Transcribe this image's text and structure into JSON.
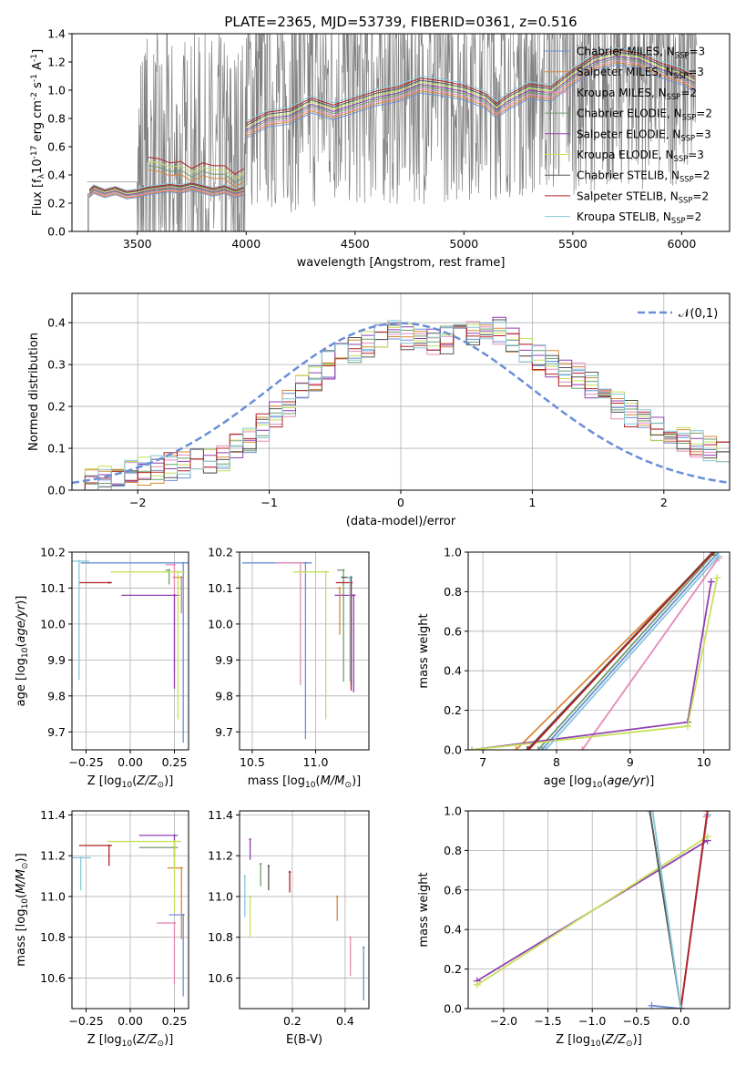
{
  "figure_title": "PLATE=2365, MJD=53739, FIBERID=0361, z=0.516",
  "model_names": [
    "Chabrier MILES",
    "Salpeter MILES",
    "Kroupa MILES",
    "Chabrier ELODIE",
    "Salpeter ELODIE",
    "Kroupa ELODIE",
    "Chabrier STELIB",
    "Salpeter STELIB",
    "Kroupa STELIB"
  ],
  "model_colors": [
    "#6a8fd6",
    "#d8883a",
    "#e58ab8",
    "#6f9e6c",
    "#8f3fb0",
    "#c6e05a",
    "#555555",
    "#b22222",
    "#88c7d8"
  ],
  "chart_data": [
    {
      "type": "line",
      "panel": "spectrum",
      "title": "PLATE=2365, MJD=53739, FIBERID=0361, z=0.516",
      "xlabel": "wavelength [Angstrom, rest frame]",
      "ylabel": "Flux [f$_\\lambda$10$^{-17}$ erg cm$^{-2}$ s$^{-1}$ A$^{-1}$]",
      "xlim": [
        3200,
        6220
      ],
      "ylim": [
        0,
        1.4
      ],
      "xticks": [
        3500,
        4000,
        4500,
        5000,
        5500,
        6000
      ],
      "yticks": [
        0.0,
        0.2,
        0.4,
        0.6,
        0.8,
        1.0,
        1.2,
        1.4
      ],
      "grid": false,
      "legend_position": "upper right",
      "legend": [
        "Chabrier MILES, N$_{SSP}$=3",
        "Salpeter MILES, N$_{SSP}$=3",
        "Kroupa MILES, N$_{SSP}$=2",
        "Chabrier ELODIE, N$_{SSP}$=2",
        "Salpeter ELODIE, N$_{SSP}$=3",
        "Kroupa ELODIE, N$_{SSP}$=3",
        "Chabrier STELIB, N$_{SSP}$=2",
        "Salpeter STELIB, N$_{SSP}$=2",
        "Kroupa STELIB, N$_{SSP}$=2"
      ],
      "observed_flux_color": "#808080",
      "continuum_short": {
        "x": [
          3280,
          3300,
          3350,
          3400,
          3450,
          3500,
          3550,
          3600,
          3650,
          3700,
          3750,
          3800,
          3850,
          3900,
          3950,
          3990
        ],
        "y": [
          0.27,
          0.3,
          0.27,
          0.29,
          0.26,
          0.27,
          0.29,
          0.3,
          0.31,
          0.3,
          0.32,
          0.3,
          0.28,
          0.3,
          0.27,
          0.29
        ]
      },
      "continuum_blue": {
        "x": [
          3550,
          3600,
          3650,
          3700,
          3750,
          3800,
          3850,
          3900,
          3950,
          3990
        ],
        "y": [
          0.48,
          0.47,
          0.44,
          0.45,
          0.4,
          0.44,
          0.42,
          0.42,
          0.36,
          0.4
        ]
      },
      "continuum_main": {
        "x": [
          4000,
          4100,
          4200,
          4300,
          4400,
          4500,
          4600,
          4700,
          4800,
          4900,
          5000,
          5100,
          5150,
          5200,
          5300,
          5400,
          5500,
          5600,
          5700,
          5800,
          5900,
          6000,
          6060
        ],
        "y": [
          0.72,
          0.8,
          0.82,
          0.9,
          0.85,
          0.9,
          0.95,
          0.98,
          1.04,
          1.02,
          0.99,
          0.93,
          0.86,
          0.92,
          1.0,
          0.98,
          1.1,
          1.2,
          1.24,
          1.22,
          1.15,
          1.1,
          1.05
        ]
      }
    },
    {
      "type": "histogram",
      "panel": "residuals",
      "xlabel": "(data-model)/error",
      "ylabel": "Normed distribution",
      "xlim": [
        -2.5,
        2.5
      ],
      "ylim": [
        0,
        0.47
      ],
      "xticks": [
        -2,
        -1,
        0,
        1,
        2
      ],
      "yticks": [
        0.0,
        0.1,
        0.2,
        0.3,
        0.4
      ],
      "grid": true,
      "legend_position": "upper right",
      "legend": [
        "$\\mathcal{N}(0,1)$"
      ],
      "bin_width": 0.1,
      "bin_start": -2.5,
      "base_profile": [
        0.02,
        0.025,
        0.03,
        0.035,
        0.04,
        0.045,
        0.05,
        0.055,
        0.06,
        0.065,
        0.07,
        0.08,
        0.1,
        0.12,
        0.15,
        0.18,
        0.21,
        0.24,
        0.27,
        0.3,
        0.32,
        0.33,
        0.35,
        0.37,
        0.38,
        0.37,
        0.36,
        0.35,
        0.36,
        0.37,
        0.38,
        0.39,
        0.38,
        0.36,
        0.34,
        0.32,
        0.3,
        0.28,
        0.27,
        0.25,
        0.23,
        0.2,
        0.18,
        0.16,
        0.14,
        0.13,
        0.12,
        0.11,
        0.1,
        0.09
      ]
    },
    {
      "type": "scatter",
      "panel": "age-vs-metallicity",
      "xlabel": "Z [log$_{10}$($Z/Z_\\odot$)]",
      "ylabel": "age  [log$_{10}$($age/yr$)]",
      "xlim": [
        -0.33,
        0.33
      ],
      "ylim": [
        9.65,
        10.2
      ],
      "xticks": [
        -0.25,
        0.0,
        0.25
      ],
      "xticklabels": [
        "-0.25",
        "0.00",
        "0.25"
      ],
      "yticks": [
        9.7,
        9.8,
        9.9,
        10.0,
        10.1,
        10.2
      ],
      "grid": true,
      "points": [
        {
          "model": 0,
          "x": 0.3,
          "y": 10.17,
          "xerr": 0.58,
          "yerr": 0.5
        },
        {
          "model": 1,
          "x": 0.29,
          "y": 10.13,
          "xerr": 0.05,
          "yerr": 0.1
        },
        {
          "model": 2,
          "x": 0.25,
          "y": 10.165,
          "xerr": 0.05,
          "yerr": 0.3
        },
        {
          "model": 3,
          "x": 0.22,
          "y": 10.15,
          "xerr": 0.02,
          "yerr": 0.04
        },
        {
          "model": 4,
          "x": 0.25,
          "y": 10.08,
          "xerr": 0.3,
          "yerr": 0.26
        },
        {
          "model": 5,
          "x": 0.27,
          "y": 10.145,
          "xerr": 0.38,
          "yerr": 0.41
        },
        {
          "model": 7,
          "x": -0.12,
          "y": 10.115,
          "xerr": 0.17,
          "yerr": 0.0
        },
        {
          "model": 8,
          "x": -0.29,
          "y": 10.175,
          "xerr": 0.59,
          "yerr": 0.33
        }
      ]
    },
    {
      "type": "scatter",
      "panel": "age-vs-mass",
      "xlabel": "mass [log$_{10}$($M/M_\\odot$)]",
      "ylabel": "",
      "xlim": [
        10.4,
        11.42
      ],
      "ylim": [
        9.65,
        10.2
      ],
      "xticks": [
        10.5,
        11.0
      ],
      "xticklabels": [
        "10.5",
        "11.0"
      ],
      "yticks": [
        9.7,
        9.8,
        9.9,
        10.0,
        10.1,
        10.2
      ],
      "grid": true,
      "points": [
        {
          "model": 0,
          "x": 10.92,
          "y": 10.17,
          "xerr": 0.5,
          "yerr": 0.49
        },
        {
          "model": 2,
          "x": 10.88,
          "y": 10.17,
          "xerr": 0.2,
          "yerr": 0.34
        },
        {
          "model": 3,
          "x": 11.22,
          "y": 10.15,
          "xerr": 0.05,
          "yerr": 0.31
        },
        {
          "model": 4,
          "x": 11.3,
          "y": 10.08,
          "xerr": 0.15,
          "yerr": 0.27
        },
        {
          "model": 5,
          "x": 11.08,
          "y": 10.145,
          "xerr": 0.26,
          "yerr": 0.41
        },
        {
          "model": 6,
          "x": 11.28,
          "y": 10.13,
          "xerr": 0.08,
          "yerr": 0.3
        },
        {
          "model": 7,
          "x": 11.28,
          "y": 10.115,
          "xerr": 0.12,
          "yerr": 0.3
        },
        {
          "model": 1,
          "x": 11.19,
          "y": 10.1,
          "xerr": 0.02,
          "yerr": 0.13
        },
        {
          "model": 8,
          "x": 11.27,
          "y": 10.13,
          "xerr": 0.02,
          "yerr": 0.29
        }
      ]
    },
    {
      "type": "line",
      "panel": "weight-vs-age",
      "xlabel": "age  [log$_{10}$($age/yr$)]",
      "ylabel": "mass weight",
      "xlim": [
        6.8,
        10.35
      ],
      "ylim": [
        0,
        1.0
      ],
      "xticks": [
        7,
        8,
        9,
        10
      ],
      "yticks": [
        0.0,
        0.2,
        0.4,
        0.6,
        0.8,
        1.0
      ],
      "grid": true,
      "series": [
        {
          "model": 0,
          "x": [
            7.8,
            10.2
          ],
          "y": [
            0.0,
            1.0
          ]
        },
        {
          "model": 1,
          "x": [
            7.45,
            10.15
          ],
          "y": [
            0.0,
            1.0
          ]
        },
        {
          "model": 2,
          "x": [
            8.35,
            10.2
          ],
          "y": [
            0.0,
            0.97
          ]
        },
        {
          "model": 3,
          "x": [
            7.75,
            10.15
          ],
          "y": [
            0.0,
            1.0
          ]
        },
        {
          "model": 4,
          "x": [
            6.85,
            9.78,
            10.1
          ],
          "y": [
            0.0,
            0.14,
            0.85
          ]
        },
        {
          "model": 5,
          "x": [
            6.85,
            9.78,
            10.18
          ],
          "y": [
            0.0,
            0.12,
            0.87
          ]
        },
        {
          "model": 6,
          "x": [
            7.6,
            10.12
          ],
          "y": [
            0.0,
            1.0
          ]
        },
        {
          "model": 7,
          "x": [
            7.62,
            10.13
          ],
          "y": [
            0.0,
            1.0
          ]
        },
        {
          "model": 8,
          "x": [
            7.85,
            10.2
          ],
          "y": [
            0.0,
            0.98
          ]
        }
      ]
    },
    {
      "type": "scatter",
      "panel": "mass-vs-metallicity",
      "xlabel": "Z [log$_{10}$($Z/Z_\\odot$)]",
      "ylabel": "mass [log$_{10}$($M/M_\\odot$)]",
      "xlim": [
        -0.33,
        0.33
      ],
      "ylim": [
        10.45,
        11.42
      ],
      "xticks": [
        -0.25,
        0.0,
        0.25
      ],
      "xticklabels": [
        "-0.25",
        "0.00",
        "0.25"
      ],
      "yticks": [
        10.6,
        10.8,
        11.0,
        11.2,
        11.4
      ],
      "grid": true,
      "points": [
        {
          "model": 0,
          "x": 0.3,
          "y": 10.91,
          "xerr": 0.08,
          "yerr": 0.4
        },
        {
          "model": 1,
          "x": 0.29,
          "y": 11.14,
          "xerr": 0.08,
          "yerr": 0.35
        },
        {
          "model": 2,
          "x": 0.25,
          "y": 10.87,
          "xerr": 0.1,
          "yerr": 0.3
        },
        {
          "model": 3,
          "x": 0.25,
          "y": 11.24,
          "xerr": 0.2,
          "yerr": 0.1
        },
        {
          "model": 4,
          "x": 0.25,
          "y": 11.3,
          "xerr": 0.2,
          "yerr": 0.1
        },
        {
          "model": 5,
          "x": 0.25,
          "y": 11.27,
          "xerr": 0.38,
          "yerr": 0.35
        },
        {
          "model": 7,
          "x": -0.12,
          "y": 11.25,
          "xerr": 0.17,
          "yerr": 0.1
        },
        {
          "model": 8,
          "x": -0.28,
          "y": 11.19,
          "xerr": 0.58,
          "yerr": 0.16
        }
      ]
    },
    {
      "type": "scatter",
      "panel": "mass-vs-extinction",
      "xlabel": "E(B-V)",
      "ylabel": "",
      "xlim": [
        0.0,
        0.49
      ],
      "ylim": [
        10.45,
        11.42
      ],
      "xticks": [
        0.2,
        0.4
      ],
      "xticklabels": [
        "0.2",
        "0.4"
      ],
      "yticks": [
        10.6,
        10.8,
        11.0,
        11.2,
        11.4
      ],
      "grid": true,
      "points": [
        {
          "model": 0,
          "x": 0.47,
          "y": 10.75,
          "yerr": 0.26
        },
        {
          "model": 1,
          "x": 0.37,
          "y": 11.0,
          "yerr": 0.12
        },
        {
          "model": 2,
          "x": 0.42,
          "y": 10.8,
          "yerr": 0.19
        },
        {
          "model": 3,
          "x": 0.08,
          "y": 11.16,
          "yerr": 0.11
        },
        {
          "model": 4,
          "x": 0.04,
          "y": 11.28,
          "yerr": 0.1
        },
        {
          "model": 5,
          "x": 0.04,
          "y": 11.0,
          "yerr": 0.2
        },
        {
          "model": 6,
          "x": 0.11,
          "y": 11.15,
          "yerr": 0.12
        },
        {
          "model": 7,
          "x": 0.19,
          "y": 11.12,
          "yerr": 0.1
        },
        {
          "model": 8,
          "x": 0.02,
          "y": 11.1,
          "yerr": 0.2
        }
      ]
    },
    {
      "type": "line",
      "panel": "weight-vs-metallicity",
      "xlabel": "Z [log$_{10}$($Z/Z_\\odot$)]",
      "ylabel": "mass weight",
      "xlim": [
        -2.4,
        0.55
      ],
      "ylim": [
        0,
        1.0
      ],
      "xticks": [
        -2.0,
        -1.5,
        -1.0,
        -0.5,
        0.0
      ],
      "xticklabels": [
        "-2.0",
        "-1.5",
        "-1.0",
        "-0.5",
        "0.0"
      ],
      "yticks": [
        0.0,
        0.2,
        0.4,
        0.6,
        0.8,
        1.0
      ],
      "grid": true,
      "series": [
        {
          "model": 0,
          "x": [
            -0.33,
            0.0,
            0.3
          ],
          "y": [
            0.015,
            0.0,
            0.98
          ]
        },
        {
          "model": 1,
          "x": [
            0.0,
            0.3
          ],
          "y": [
            0.0,
            1.0
          ]
        },
        {
          "model": 2,
          "x": [
            0.0,
            0.29
          ],
          "y": [
            0.0,
            0.97
          ]
        },
        {
          "model": 3,
          "x": [
            -0.35,
            0.0
          ],
          "y": [
            1.0,
            0.0
          ]
        },
        {
          "model": 4,
          "x": [
            -2.3,
            0.3
          ],
          "y": [
            0.14,
            0.85
          ]
        },
        {
          "model": 5,
          "x": [
            -2.3,
            0.3
          ],
          "y": [
            0.12,
            0.87
          ]
        },
        {
          "model": 6,
          "x": [
            -0.35,
            0.0
          ],
          "y": [
            1.0,
            0.0
          ]
        },
        {
          "model": 7,
          "x": [
            0.0,
            0.3
          ],
          "y": [
            0.0,
            1.0
          ]
        },
        {
          "model": 8,
          "x": [
            -0.32,
            0.0
          ],
          "y": [
            1.0,
            0.0
          ]
        }
      ]
    }
  ]
}
